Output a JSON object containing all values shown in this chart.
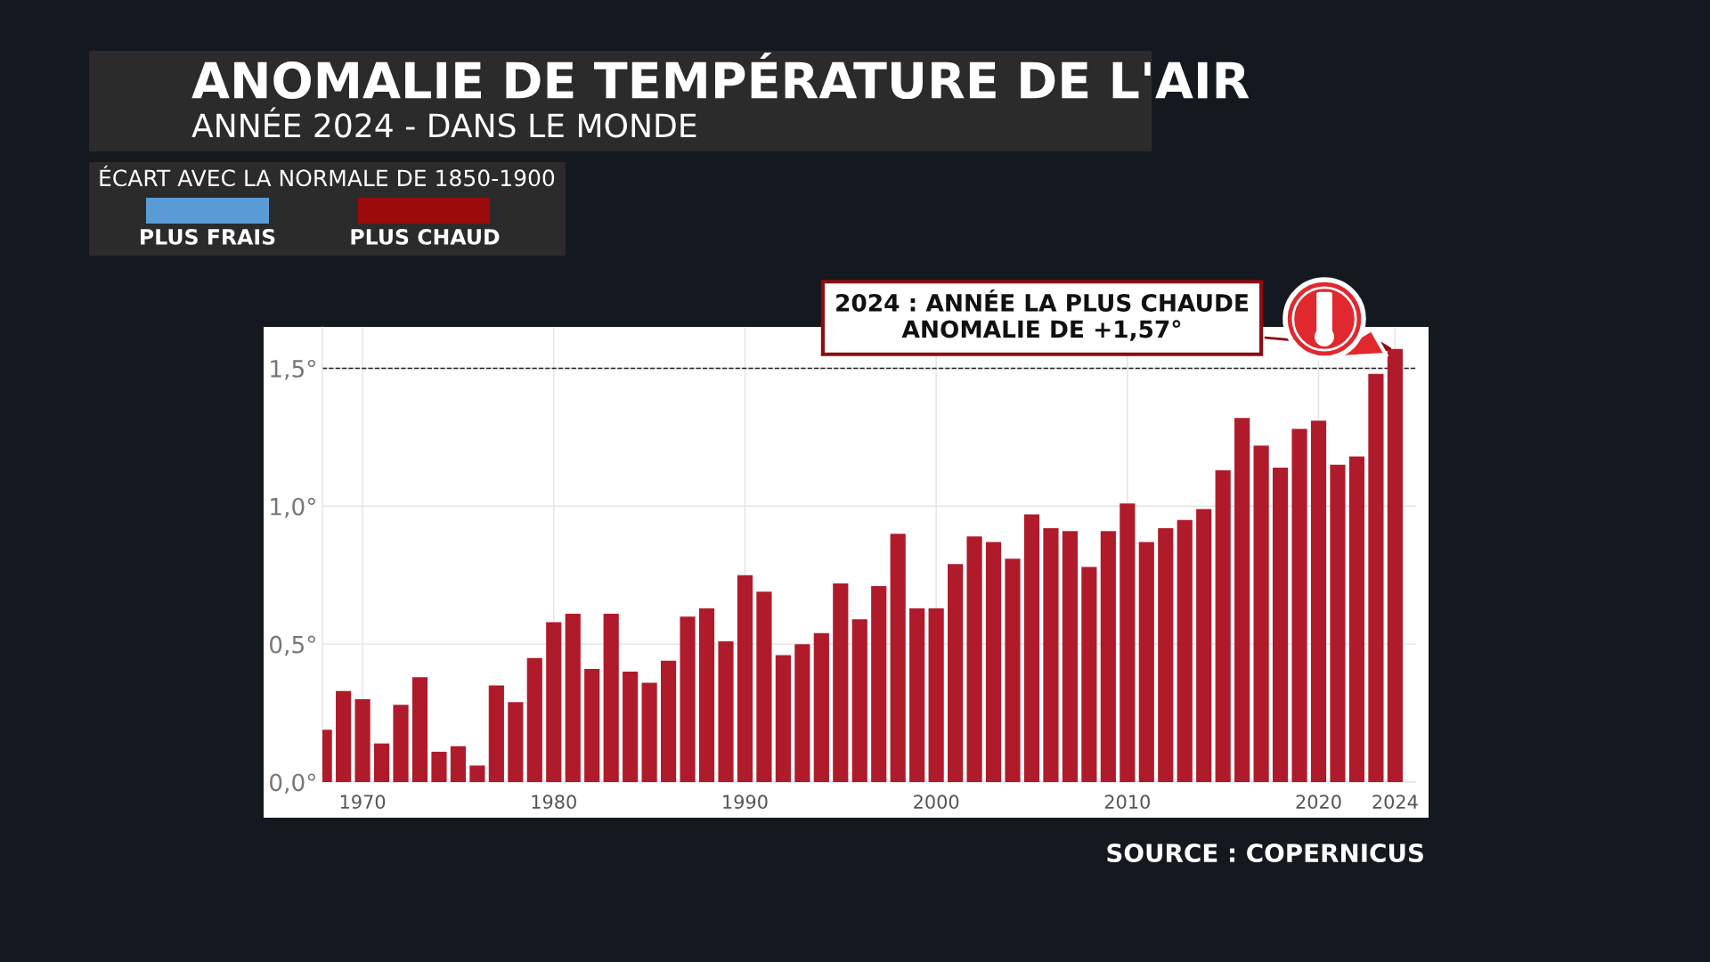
{
  "chart_data": {
    "type": "bar",
    "title": "ANOMALIE DE TEMPÉRATURE DE L'AIR",
    "subtitle": "ANNÉE 2024 - DANS LE MONDE",
    "grid": true,
    "x": [
      1968,
      1969,
      1970,
      1971,
      1972,
      1973,
      1974,
      1975,
      1976,
      1977,
      1978,
      1979,
      1980,
      1981,
      1982,
      1983,
      1984,
      1985,
      1986,
      1987,
      1988,
      1989,
      1990,
      1991,
      1992,
      1993,
      1994,
      1995,
      1996,
      1997,
      1998,
      1999,
      2000,
      2001,
      2002,
      2003,
      2004,
      2005,
      2006,
      2007,
      2008,
      2009,
      2010,
      2011,
      2012,
      2013,
      2014,
      2015,
      2016,
      2017,
      2018,
      2019,
      2020,
      2021,
      2022,
      2023,
      2024
    ],
    "color": "#b01b2b",
    "values": [
      0.19,
      0.33,
      0.3,
      0.14,
      0.28,
      0.38,
      0.11,
      0.13,
      0.06,
      0.35,
      0.29,
      0.45,
      0.58,
      0.61,
      0.41,
      0.61,
      0.4,
      0.36,
      0.44,
      0.6,
      0.63,
      0.51,
      0.75,
      0.69,
      0.46,
      0.5,
      0.54,
      0.72,
      0.59,
      0.71,
      0.9,
      0.63,
      0.63,
      0.79,
      0.89,
      0.87,
      0.81,
      0.97,
      0.92,
      0.91,
      0.78,
      0.91,
      1.01,
      0.87,
      0.92,
      0.95,
      0.99,
      1.13,
      1.32,
      1.22,
      1.14,
      1.28,
      1.31,
      1.15,
      1.18,
      1.48,
      1.57
    ],
    "xlim": [
      1967.9,
      2025.1
    ],
    "xticks": [
      1970,
      1980,
      1990,
      2000,
      2010,
      2020,
      2024
    ],
    "ylim": [
      0,
      1.65
    ],
    "yticks": [
      {
        "value": 0,
        "label": "0,0°"
      },
      {
        "value": 0.5,
        "label": "0,5°"
      },
      {
        "value": 1.0,
        "label": "1,0°"
      },
      {
        "value": 1.5,
        "label": "1,5°"
      }
    ],
    "ref_lines": [
      {
        "axis": "y",
        "value": 1.5,
        "color": "#222222",
        "line_style": "dashed"
      }
    ],
    "annotations": [
      {
        "text": "2024 : ANNÉE LA PLUS CHAUDE\nANOMALIE DE +1,57°",
        "x": 2024,
        "y": 1.57
      },
      "SOURCE : COPERNICUS",
      "ÉCART AVEC LA NORMALE DE 1850-1900",
      "PLUS FRAIS",
      "PLUS CHAUD"
    ]
  }
}
